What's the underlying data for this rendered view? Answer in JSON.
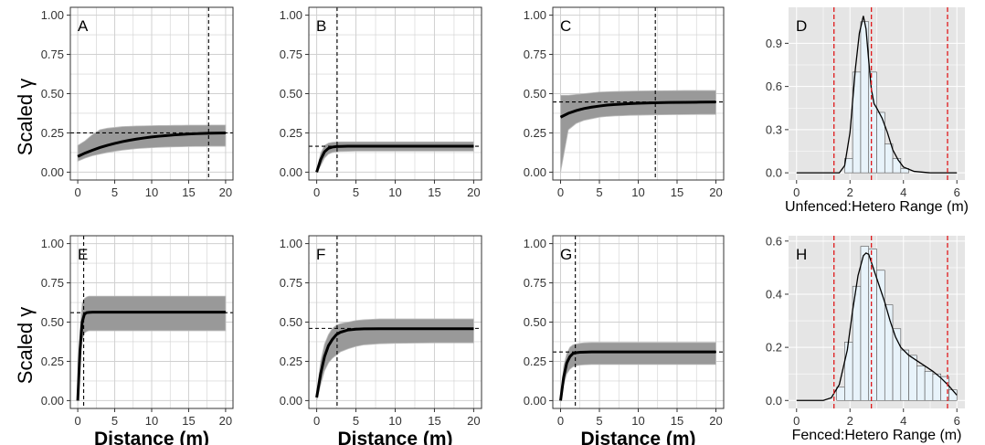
{
  "figure": {
    "y_label": "Scaled γ",
    "x_label_variogram": "Distance (m)"
  },
  "colors": {
    "panel_bg_variogram": "#ffffff",
    "panel_bg_hist": "#e5e5e5",
    "grid": "#d0d0d0",
    "band": "#999999",
    "band_line": "#bdbdbd",
    "mean_line": "#000000",
    "hist_fill": "#e8f3fa",
    "hist_stroke": "#555555",
    "red_dashed": "#e0191b"
  },
  "chart_data": [
    {
      "id": "A",
      "type": "line",
      "panel_label": "A",
      "xlim": [
        -1,
        21
      ],
      "ylim": [
        -0.05,
        1.05
      ],
      "xticks": [
        0,
        5,
        10,
        15,
        20
      ],
      "xtick_labels": [
        "0",
        "5",
        "10",
        "15",
        "20"
      ],
      "yticks": [
        0,
        0.25,
        0.5,
        0.75,
        1
      ],
      "ytick_labels": [
        "0.00",
        "0.25",
        "0.50",
        "0.75",
        "1.00"
      ],
      "series": [
        {
          "x": [
            0,
            1,
            2,
            3,
            4,
            5,
            6,
            7,
            8,
            9,
            10,
            11,
            12,
            13,
            14,
            15,
            16,
            17,
            18,
            19,
            20
          ],
          "y": [
            0.1,
            0.122,
            0.14,
            0.157,
            0.171,
            0.183,
            0.194,
            0.203,
            0.211,
            0.218,
            0.224,
            0.229,
            0.233,
            0.237,
            0.24,
            0.243,
            0.245,
            0.247,
            0.248,
            0.249,
            0.25
          ]
        }
      ],
      "band_upper": [
        0.17,
        0.2,
        0.24,
        0.27,
        0.28,
        0.285,
        0.29,
        0.292,
        0.294,
        0.295,
        0.296,
        0.297,
        0.297,
        0.298,
        0.298,
        0.299,
        0.299,
        0.299,
        0.3,
        0.3,
        0.3
      ],
      "band_lower": [
        0.07,
        0.09,
        0.105,
        0.115,
        0.125,
        0.133,
        0.14,
        0.145,
        0.15,
        0.153,
        0.156,
        0.158,
        0.16,
        0.161,
        0.162,
        0.163,
        0.164,
        0.164,
        0.165,
        0.165,
        0.165
      ],
      "hline": 0.25,
      "vline": 17.7
    },
    {
      "id": "B",
      "type": "line",
      "panel_label": "B",
      "xlim": [
        -1,
        21
      ],
      "ylim": [
        -0.05,
        1.05
      ],
      "xticks": [
        0,
        5,
        10,
        15,
        20
      ],
      "xtick_labels": [
        "0",
        "5",
        "10",
        "15",
        "20"
      ],
      "yticks": [
        0,
        0.25,
        0.5,
        0.75,
        1
      ],
      "ytick_labels": [
        "0.00",
        "0.25",
        "0.50",
        "0.75",
        "1.00"
      ],
      "series": [
        {
          "x": [
            0,
            0.5,
            1,
            1.5,
            2,
            2.5,
            3,
            4,
            5,
            7,
            10,
            15,
            20
          ],
          "y": [
            0.0,
            0.08,
            0.13,
            0.152,
            0.16,
            0.163,
            0.164,
            0.165,
            0.165,
            0.165,
            0.165,
            0.165,
            0.165
          ]
        }
      ],
      "band_upper": [
        0.01,
        0.12,
        0.17,
        0.185,
        0.19,
        0.192,
        0.193,
        0.193,
        0.193,
        0.193,
        0.193,
        0.193,
        0.193
      ],
      "band_lower": [
        0.0,
        0.04,
        0.09,
        0.115,
        0.125,
        0.13,
        0.132,
        0.133,
        0.134,
        0.134,
        0.134,
        0.134,
        0.134
      ],
      "hline": 0.165,
      "vline": 2.6
    },
    {
      "id": "C",
      "type": "line",
      "panel_label": "C",
      "xlim": [
        -1,
        21
      ],
      "ylim": [
        -0.05,
        1.05
      ],
      "xticks": [
        0,
        5,
        10,
        15,
        20
      ],
      "xtick_labels": [
        "0",
        "5",
        "10",
        "15",
        "20"
      ],
      "yticks": [
        0,
        0.25,
        0.5,
        0.75,
        1
      ],
      "ytick_labels": [
        "0.00",
        "0.25",
        "0.50",
        "0.75",
        "1.00"
      ],
      "series": [
        {
          "x": [
            0,
            1,
            2,
            3,
            4,
            5,
            6,
            7,
            8,
            9,
            10,
            12,
            14,
            16,
            18,
            20
          ],
          "y": [
            0.35,
            0.375,
            0.392,
            0.405,
            0.414,
            0.421,
            0.427,
            0.431,
            0.434,
            0.437,
            0.439,
            0.442,
            0.444,
            0.445,
            0.446,
            0.447
          ]
        }
      ],
      "band_upper": [
        0.49,
        0.49,
        0.495,
        0.5,
        0.505,
        0.51,
        0.512,
        0.514,
        0.515,
        0.516,
        0.517,
        0.518,
        0.519,
        0.52,
        0.52,
        0.52
      ],
      "band_lower": [
        0.0,
        0.27,
        0.31,
        0.33,
        0.34,
        0.35,
        0.355,
        0.358,
        0.36,
        0.362,
        0.363,
        0.365,
        0.366,
        0.367,
        0.368,
        0.368
      ],
      "hline": 0.447,
      "vline": 12.2
    },
    {
      "id": "D",
      "type": "bar",
      "panel_label": "D",
      "xlabel": "Unfenced:Hetero Range (m)",
      "xlim": [
        -0.3,
        6.3
      ],
      "ylim": [
        -0.05,
        1.15
      ],
      "xticks": [
        0,
        2,
        4,
        6
      ],
      "xtick_labels": [
        "0",
        "2",
        "4",
        "6"
      ],
      "yticks": [
        0,
        0.3,
        0.6,
        0.9
      ],
      "ytick_labels": [
        "0.0",
        "0.3",
        "0.6",
        "0.9"
      ],
      "bin_width": 0.3,
      "bin_starts": [
        1.5,
        1.8,
        2.1,
        2.4,
        2.7,
        3.0,
        3.3,
        3.6,
        3.9,
        4.2,
        4.5
      ],
      "values": [
        0.0,
        0.1,
        0.7,
        1.05,
        0.7,
        0.42,
        0.2,
        0.1,
        0.03,
        0.0,
        0.0
      ],
      "density": {
        "x": [
          0.0,
          1.0,
          1.6,
          1.8,
          2.0,
          2.2,
          2.35,
          2.5,
          2.6,
          2.7,
          2.8,
          2.9,
          3.0,
          3.2,
          3.4,
          3.6,
          3.8,
          4.0,
          4.4,
          5.0,
          6.0
        ],
        "y": [
          0.0,
          0.0,
          0.0,
          0.05,
          0.28,
          0.72,
          0.97,
          1.09,
          1.0,
          0.78,
          0.58,
          0.48,
          0.45,
          0.38,
          0.28,
          0.16,
          0.09,
          0.04,
          0.01,
          0.0,
          0.0
        ]
      },
      "vlines": [
        1.4,
        2.8,
        5.65
      ]
    },
    {
      "id": "E",
      "type": "line",
      "panel_label": "E",
      "xlabel": "Distance (m)",
      "xlim": [
        -1,
        21
      ],
      "ylim": [
        -0.05,
        1.05
      ],
      "xticks": [
        0,
        5,
        10,
        15,
        20
      ],
      "xtick_labels": [
        "0",
        "5",
        "10",
        "15",
        "20"
      ],
      "yticks": [
        0,
        0.25,
        0.5,
        0.75,
        1
      ],
      "ytick_labels": [
        "0.00",
        "0.25",
        "0.50",
        "0.75",
        "1.00"
      ],
      "series": [
        {
          "x": [
            0,
            0.3,
            0.6,
            0.9,
            1.2,
            1.5,
            2,
            3,
            5,
            10,
            15,
            20
          ],
          "y": [
            0.0,
            0.32,
            0.5,
            0.55,
            0.56,
            0.562,
            0.563,
            0.563,
            0.563,
            0.563,
            0.563,
            0.563
          ]
        }
      ],
      "band_upper": [
        0.0,
        0.45,
        0.62,
        0.65,
        0.66,
        0.665,
        0.665,
        0.665,
        0.665,
        0.665,
        0.665,
        0.665
      ],
      "band_lower": [
        0.0,
        0.2,
        0.38,
        0.43,
        0.44,
        0.445,
        0.445,
        0.445,
        0.445,
        0.445,
        0.445,
        0.445
      ],
      "hline": 0.56,
      "vline": 0.8
    },
    {
      "id": "F",
      "type": "line",
      "panel_label": "F",
      "xlabel": "Distance (m)",
      "xlim": [
        -1,
        21
      ],
      "ylim": [
        -0.05,
        1.05
      ],
      "xticks": [
        0,
        5,
        10,
        15,
        20
      ],
      "xtick_labels": [
        "0",
        "5",
        "10",
        "15",
        "20"
      ],
      "yticks": [
        0,
        0.25,
        0.5,
        0.75,
        1
      ],
      "ytick_labels": [
        "0.00",
        "0.25",
        "0.50",
        "0.75",
        "1.00"
      ],
      "series": [
        {
          "x": [
            0,
            0.5,
            1,
            1.5,
            2,
            2.5,
            3,
            4,
            5,
            6,
            8,
            10,
            15,
            20
          ],
          "y": [
            0.02,
            0.17,
            0.28,
            0.35,
            0.39,
            0.42,
            0.435,
            0.45,
            0.455,
            0.457,
            0.458,
            0.458,
            0.458,
            0.458
          ]
        }
      ],
      "band_upper": [
        0.04,
        0.25,
        0.36,
        0.42,
        0.46,
        0.48,
        0.49,
        0.5,
        0.51,
        0.515,
        0.52,
        0.52,
        0.52,
        0.52
      ],
      "band_lower": [
        0.0,
        0.1,
        0.19,
        0.24,
        0.27,
        0.29,
        0.31,
        0.33,
        0.345,
        0.355,
        0.362,
        0.365,
        0.368,
        0.368
      ],
      "hline": 0.46,
      "vline": 2.6
    },
    {
      "id": "G",
      "type": "line",
      "panel_label": "G",
      "xlabel": "Distance (m)",
      "xlim": [
        -1,
        21
      ],
      "ylim": [
        -0.05,
        1.05
      ],
      "xticks": [
        0,
        5,
        10,
        15,
        20
      ],
      "xtick_labels": [
        "0",
        "5",
        "10",
        "15",
        "20"
      ],
      "yticks": [
        0,
        0.25,
        0.5,
        0.75,
        1
      ],
      "ytick_labels": [
        "0.00",
        "0.25",
        "0.50",
        "0.75",
        "1.00"
      ],
      "series": [
        {
          "x": [
            0,
            0.4,
            0.8,
            1.2,
            1.6,
            2,
            2.5,
            3,
            4,
            5,
            10,
            15,
            20
          ],
          "y": [
            0.0,
            0.15,
            0.24,
            0.28,
            0.3,
            0.305,
            0.308,
            0.309,
            0.31,
            0.31,
            0.31,
            0.31,
            0.31
          ]
        }
      ],
      "band_upper": [
        0.0,
        0.22,
        0.3,
        0.34,
        0.355,
        0.36,
        0.365,
        0.368,
        0.37,
        0.37,
        0.37,
        0.37,
        0.37
      ],
      "band_lower": [
        0.0,
        0.1,
        0.17,
        0.2,
        0.215,
        0.222,
        0.226,
        0.228,
        0.23,
        0.23,
        0.23,
        0.23,
        0.23
      ],
      "hline": 0.31,
      "vline": 1.9
    },
    {
      "id": "H",
      "type": "bar",
      "panel_label": "H",
      "xlabel": "Fenced:Hetero Range (m)",
      "xlim": [
        -0.3,
        6.3
      ],
      "ylim": [
        -0.03,
        0.62
      ],
      "xticks": [
        0,
        2,
        4,
        6
      ],
      "xtick_labels": [
        "0",
        "2",
        "4",
        "6"
      ],
      "yticks": [
        0,
        0.2,
        0.4,
        0.6
      ],
      "ytick_labels": [
        "0.0",
        "0.2",
        "0.4",
        "0.6"
      ],
      "bin_width": 0.3,
      "bin_starts": [
        1.2,
        1.5,
        1.8,
        2.1,
        2.4,
        2.7,
        3.0,
        3.3,
        3.6,
        3.9,
        4.2,
        4.5,
        4.8,
        5.1,
        5.4,
        5.7
      ],
      "values": [
        0.0,
        0.05,
        0.22,
        0.43,
        0.58,
        0.57,
        0.49,
        0.36,
        0.27,
        0.19,
        0.17,
        0.13,
        0.11,
        0.1,
        0.09,
        0.04
      ],
      "density": {
        "x": [
          0.0,
          1.0,
          1.3,
          1.6,
          1.9,
          2.1,
          2.3,
          2.5,
          2.6,
          2.7,
          2.9,
          3.1,
          3.3,
          3.5,
          3.7,
          3.9,
          4.2,
          4.5,
          4.8,
          5.1,
          5.4,
          5.7,
          6.0
        ],
        "y": [
          0.0,
          0.0,
          0.01,
          0.06,
          0.19,
          0.34,
          0.47,
          0.545,
          0.555,
          0.55,
          0.49,
          0.43,
          0.37,
          0.3,
          0.24,
          0.2,
          0.17,
          0.15,
          0.13,
          0.11,
          0.085,
          0.055,
          0.02
        ]
      },
      "vlines": [
        1.4,
        2.8,
        5.65
      ]
    }
  ]
}
